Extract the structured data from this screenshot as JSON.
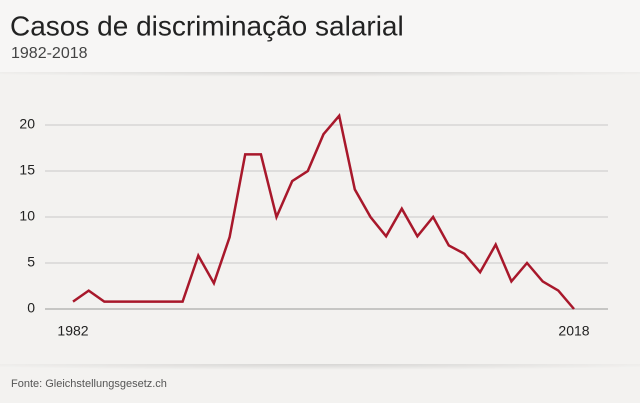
{
  "chart_data": {
    "type": "line",
    "title": "Casos de discriminação salarial",
    "subtitle": "1982-2018",
    "source": "Fonte: Gleichstellungsgesetz.ch",
    "categories": [
      "1982",
      null,
      null,
      null,
      null,
      null,
      null,
      null,
      null,
      null,
      null,
      null,
      null,
      null,
      null,
      null,
      null,
      null,
      null,
      null,
      null,
      null,
      null,
      null,
      null,
      null,
      null,
      null,
      null,
      null,
      null,
      null,
      "2018"
    ],
    "series": [
      {
        "name": "Casos",
        "color": "#a8182b",
        "values": [
          0.8,
          2,
          0.8,
          0.8,
          0.8,
          0.8,
          0.8,
          0.8,
          5.8,
          2.8,
          7.8,
          16.8,
          16.8,
          10,
          13.9,
          15,
          19,
          21,
          13,
          10,
          7.9,
          10.9,
          7.9,
          10,
          6.9,
          6,
          4,
          7,
          3,
          5,
          3,
          2,
          0
        ]
      }
    ],
    "ylim": [
      0,
      20
    ],
    "yticks": [
      0,
      5,
      10,
      15,
      20
    ],
    "grid": true
  }
}
